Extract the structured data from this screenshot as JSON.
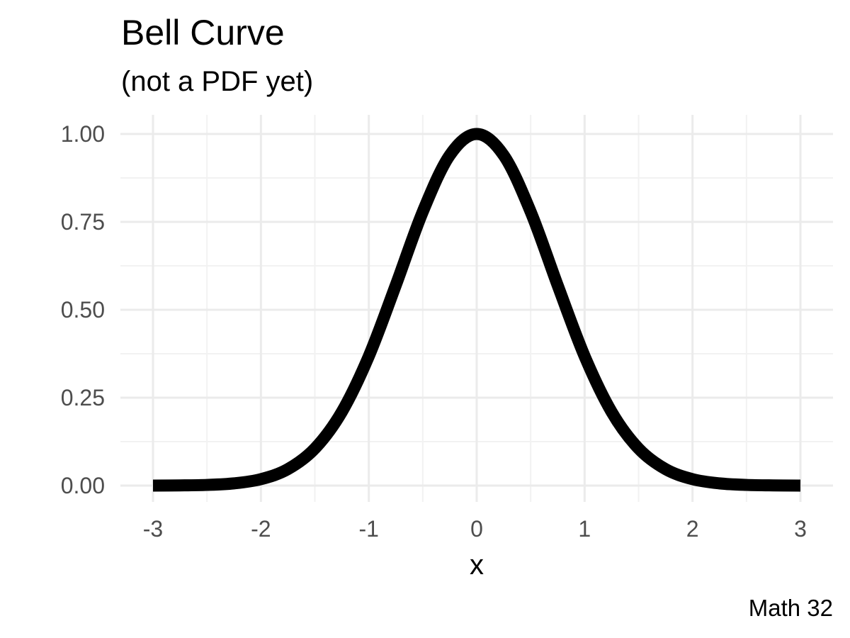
{
  "chart_data": {
    "type": "line",
    "title": "Bell Curve",
    "subtitle": "(not a PDF yet)",
    "caption": "Math 32",
    "xlabel": "x",
    "ylabel": "",
    "xlim": [
      -3,
      3
    ],
    "ylim": [
      0,
      1
    ],
    "x_ticks": [
      -3,
      -2,
      -1,
      0,
      1,
      2,
      3
    ],
    "x_tick_labels": [
      "-3",
      "-2",
      "-1",
      "0",
      "1",
      "2",
      "3"
    ],
    "y_ticks": [
      0,
      0.25,
      0.5,
      0.75,
      1
    ],
    "y_tick_labels": [
      "0.00",
      "0.25",
      "0.50",
      "0.75",
      "1.00"
    ],
    "grid": true,
    "legend": "none",
    "series": [
      {
        "color": "#000000",
        "x": [
          -3.0,
          -2.75,
          -2.5,
          -2.25,
          -2.0,
          -1.75,
          -1.5,
          -1.25,
          -1.0,
          -0.75,
          -0.5,
          -0.25,
          0.0,
          0.25,
          0.5,
          0.75,
          1.0,
          1.25,
          1.5,
          1.75,
          2.0,
          2.25,
          2.5,
          2.75,
          3.0
        ],
        "values": [
          0.0001,
          0.0005,
          0.0019,
          0.0063,
          0.0183,
          0.0468,
          0.1054,
          0.2096,
          0.3679,
          0.5698,
          0.7788,
          0.9394,
          1.0,
          0.9394,
          0.7788,
          0.5698,
          0.3679,
          0.2096,
          0.1054,
          0.0468,
          0.0183,
          0.0063,
          0.0019,
          0.0005,
          0.0001
        ]
      }
    ]
  }
}
